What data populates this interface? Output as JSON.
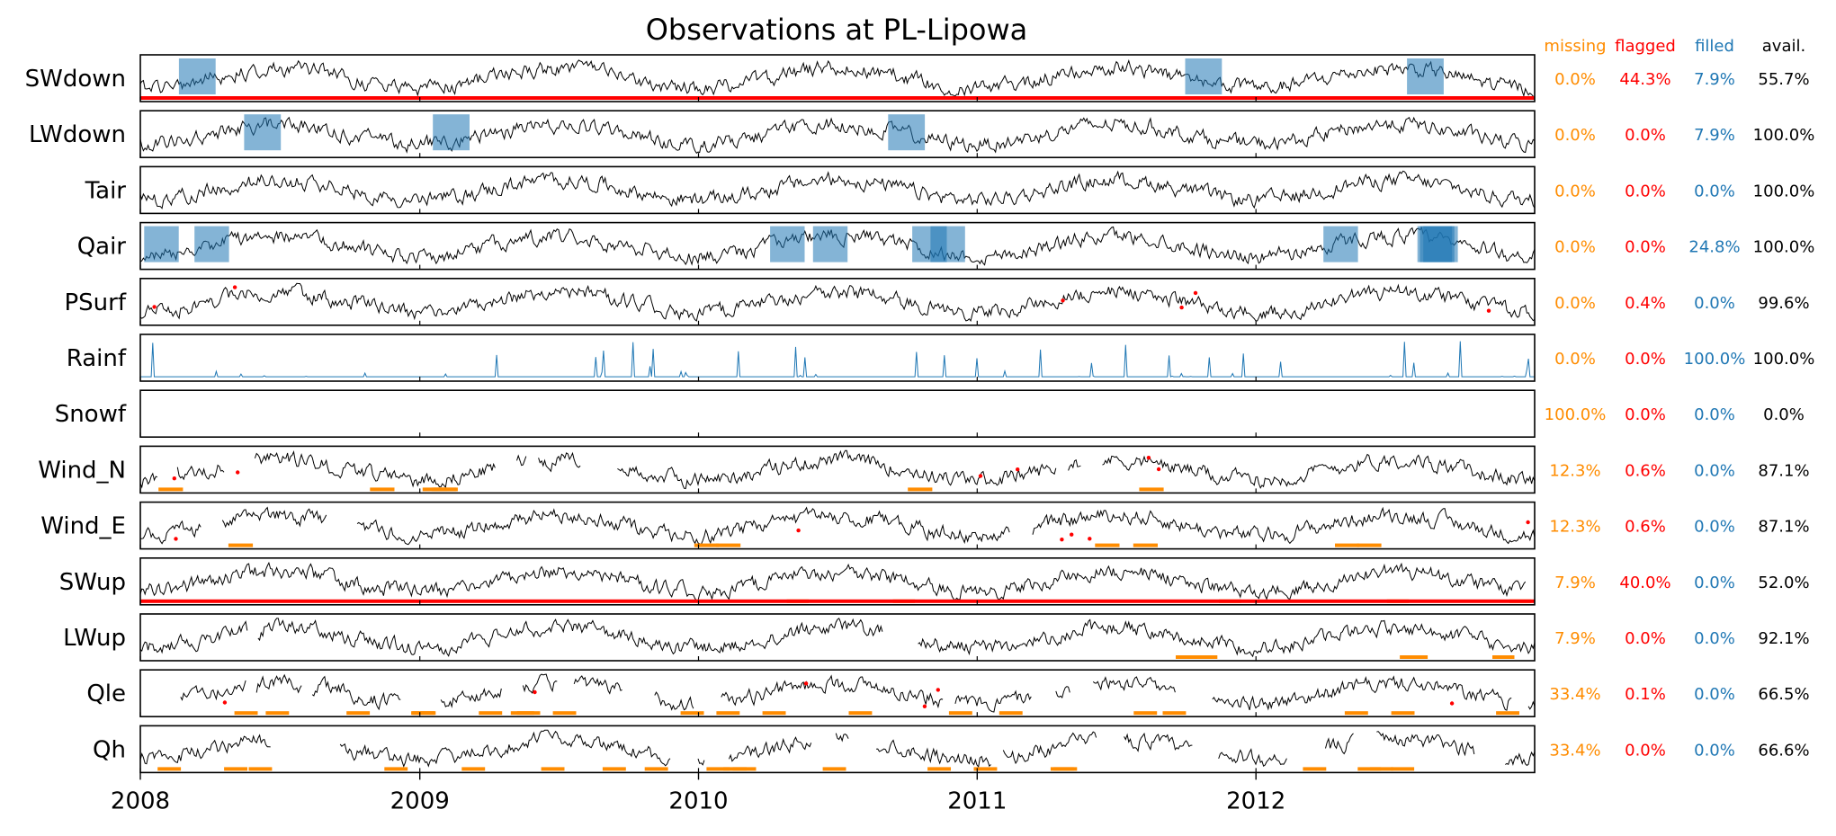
{
  "chart_data": {
    "type": "line",
    "title": "Observations at PL-Lipowa",
    "x_range": [
      "2008-01-01",
      "2012-12-31"
    ],
    "x_ticks": [
      "2008",
      "2009",
      "2010",
      "2011",
      "2012"
    ],
    "grid": false,
    "legend": "none",
    "stats_headers": {
      "missing": "missing",
      "flagged": "flagged",
      "filled": "filled",
      "avail": "avail."
    },
    "colors": {
      "observed": "#000000",
      "missing": "#ff8c00",
      "flagged": "#ff0000",
      "filled": "#1f77b4"
    },
    "variables": [
      {
        "name": "SWdown",
        "missing": "0.0%",
        "flagged": "44.3%",
        "filled": "7.9%",
        "avail": "55.7%"
      },
      {
        "name": "LWdown",
        "missing": "0.0%",
        "flagged": "0.0%",
        "filled": "7.9%",
        "avail": "100.0%"
      },
      {
        "name": "Tair",
        "missing": "0.0%",
        "flagged": "0.0%",
        "filled": "0.0%",
        "avail": "100.0%"
      },
      {
        "name": "Qair",
        "missing": "0.0%",
        "flagged": "0.0%",
        "filled": "24.8%",
        "avail": "100.0%"
      },
      {
        "name": "PSurf",
        "missing": "0.0%",
        "flagged": "0.4%",
        "filled": "0.0%",
        "avail": "99.6%"
      },
      {
        "name": "Rainf",
        "missing": "0.0%",
        "flagged": "0.0%",
        "filled": "100.0%",
        "avail": "100.0%"
      },
      {
        "name": "Snowf",
        "missing": "100.0%",
        "flagged": "0.0%",
        "filled": "0.0%",
        "avail": "0.0%"
      },
      {
        "name": "Wind_N",
        "missing": "12.3%",
        "flagged": "0.6%",
        "filled": "0.0%",
        "avail": "87.1%"
      },
      {
        "name": "Wind_E",
        "missing": "12.3%",
        "flagged": "0.6%",
        "filled": "0.0%",
        "avail": "87.1%"
      },
      {
        "name": "SWup",
        "missing": "7.9%",
        "flagged": "40.0%",
        "filled": "0.0%",
        "avail": "52.0%"
      },
      {
        "name": "LWup",
        "missing": "7.9%",
        "flagged": "0.0%",
        "filled": "0.0%",
        "avail": "92.1%"
      },
      {
        "name": "Qle",
        "missing": "33.4%",
        "flagged": "0.1%",
        "filled": "0.0%",
        "avail": "66.5%"
      },
      {
        "name": "Qh",
        "missing": "33.4%",
        "flagged": "0.0%",
        "filled": "0.0%",
        "avail": "66.6%"
      }
    ]
  }
}
